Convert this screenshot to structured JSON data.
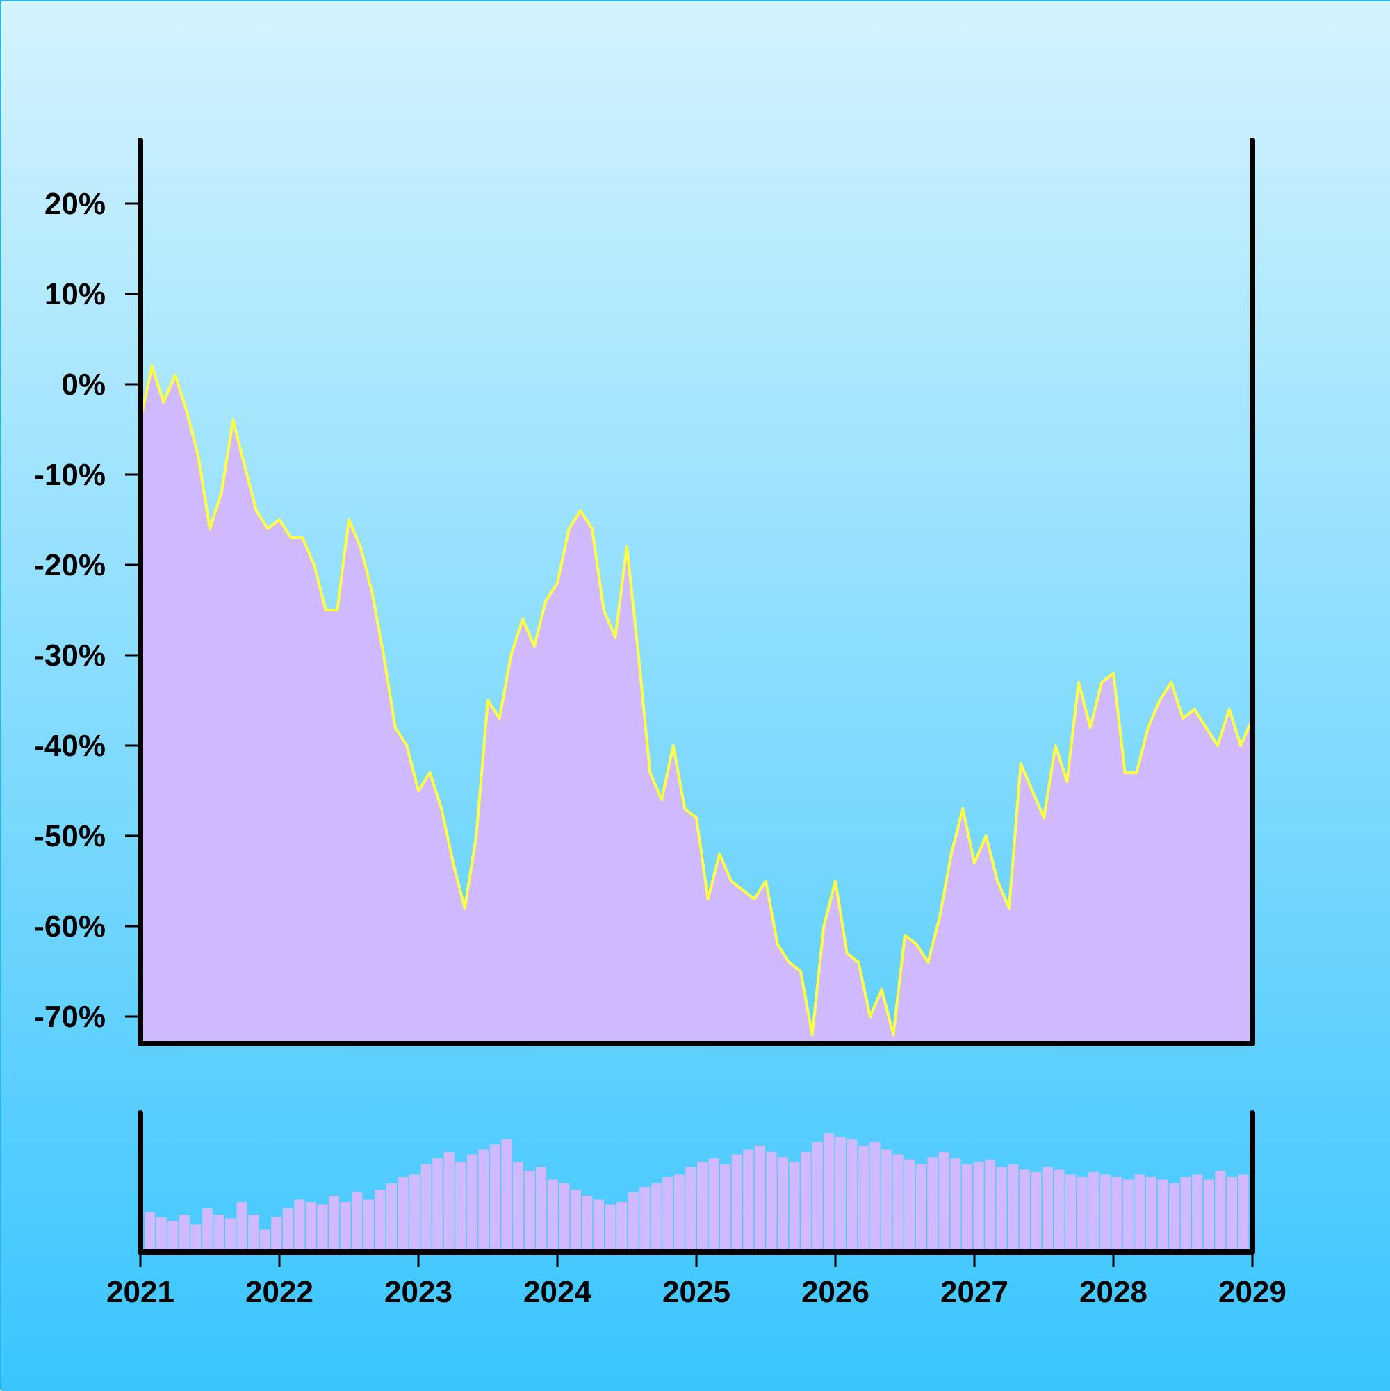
{
  "chart_data": [
    {
      "type": "area",
      "panel": "price",
      "x_range": [
        "2021-01",
        "2029-01"
      ],
      "ylim": [
        -73,
        27
      ],
      "y_ticks": [
        20,
        10,
        0,
        -10,
        -20,
        -30,
        -40,
        -50,
        -60,
        -70
      ],
      "y_tick_labels": [
        "20%",
        "10%",
        "0%",
        "-10%",
        "-20%",
        "-30%",
        "-40%",
        "-50%",
        "-60%",
        "-70%"
      ],
      "y_unit": "%",
      "grid": false,
      "series": [
        {
          "kind": "cumulative return (%)",
          "points": [
            [
              "2021-01",
              -4
            ],
            [
              "2021-02",
              2
            ],
            [
              "2021-03",
              -2
            ],
            [
              "2021-04",
              1
            ],
            [
              "2021-05",
              -3
            ],
            [
              "2021-06",
              -8
            ],
            [
              "2021-07",
              -16
            ],
            [
              "2021-08",
              -12
            ],
            [
              "2021-09",
              -4
            ],
            [
              "2021-10",
              -9
            ],
            [
              "2021-11",
              -14
            ],
            [
              "2021-12",
              -16
            ],
            [
              "2022-01",
              -15
            ],
            [
              "2022-02",
              -17
            ],
            [
              "2022-03",
              -17
            ],
            [
              "2022-04",
              -20
            ],
            [
              "2022-05",
              -25
            ],
            [
              "2022-06",
              -25
            ],
            [
              "2022-07",
              -15
            ],
            [
              "2022-08",
              -18
            ],
            [
              "2022-09",
              -23
            ],
            [
              "2022-10",
              -30
            ],
            [
              "2022-11",
              -38
            ],
            [
              "2022-12",
              -40
            ],
            [
              "2023-01",
              -45
            ],
            [
              "2023-02",
              -43
            ],
            [
              "2023-03",
              -47
            ],
            [
              "2023-04",
              -53
            ],
            [
              "2023-05",
              -58
            ],
            [
              "2023-06",
              -50
            ],
            [
              "2023-07",
              -35
            ],
            [
              "2023-08",
              -37
            ],
            [
              "2023-09",
              -30
            ],
            [
              "2023-10",
              -26
            ],
            [
              "2023-11",
              -29
            ],
            [
              "2023-12",
              -24
            ],
            [
              "2024-01",
              -22
            ],
            [
              "2024-02",
              -16
            ],
            [
              "2024-03",
              -14
            ],
            [
              "2024-04",
              -16
            ],
            [
              "2024-05",
              -25
            ],
            [
              "2024-06",
              -28
            ],
            [
              "2024-07",
              -18
            ],
            [
              "2024-08",
              -30
            ],
            [
              "2024-09",
              -43
            ],
            [
              "2024-10",
              -46
            ],
            [
              "2024-11",
              -40
            ],
            [
              "2024-12",
              -47
            ],
            [
              "2025-01",
              -48
            ],
            [
              "2025-02",
              -57
            ],
            [
              "2025-03",
              -52
            ],
            [
              "2025-04",
              -55
            ],
            [
              "2025-05",
              -56
            ],
            [
              "2025-06",
              -57
            ],
            [
              "2025-07",
              -55
            ],
            [
              "2025-08",
              -62
            ],
            [
              "2025-09",
              -64
            ],
            [
              "2025-10",
              -65
            ],
            [
              "2025-11",
              -72
            ],
            [
              "2025-12",
              -60
            ],
            [
              "2026-01",
              -55
            ],
            [
              "2026-02",
              -63
            ],
            [
              "2026-03",
              -64
            ],
            [
              "2026-04",
              -70
            ],
            [
              "2026-05",
              -67
            ],
            [
              "2026-06",
              -72
            ],
            [
              "2026-07",
              -61
            ],
            [
              "2026-08",
              -62
            ],
            [
              "2026-09",
              -64
            ],
            [
              "2026-10",
              -59
            ],
            [
              "2026-11",
              -52
            ],
            [
              "2026-12",
              -47
            ],
            [
              "2027-01",
              -53
            ],
            [
              "2027-02",
              -50
            ],
            [
              "2027-03",
              -55
            ],
            [
              "2027-04",
              -58
            ],
            [
              "2027-05",
              -42
            ],
            [
              "2027-06",
              -45
            ],
            [
              "2027-07",
              -48
            ],
            [
              "2027-08",
              -40
            ],
            [
              "2027-09",
              -44
            ],
            [
              "2027-10",
              -33
            ],
            [
              "2027-11",
              -38
            ],
            [
              "2027-12",
              -33
            ],
            [
              "2028-01",
              -32
            ],
            [
              "2028-02",
              -43
            ],
            [
              "2028-03",
              -43
            ],
            [
              "2028-04",
              -38
            ],
            [
              "2028-05",
              -35
            ],
            [
              "2028-06",
              -33
            ],
            [
              "2028-07",
              -37
            ],
            [
              "2028-08",
              -36
            ],
            [
              "2028-09",
              -38
            ],
            [
              "2028-10",
              -40
            ],
            [
              "2028-11",
              -36
            ],
            [
              "2028-12",
              -40
            ],
            [
              "2029-01",
              -37
            ]
          ]
        }
      ]
    },
    {
      "type": "bar",
      "panel": "volume",
      "x_range": [
        "2021-01",
        "2029-01"
      ],
      "y_axis_labels": false,
      "values_relative": [
        0.32,
        0.28,
        0.25,
        0.3,
        0.22,
        0.35,
        0.3,
        0.27,
        0.4,
        0.3,
        0.18,
        0.28,
        0.35,
        0.42,
        0.4,
        0.38,
        0.45,
        0.4,
        0.48,
        0.42,
        0.5,
        0.55,
        0.6,
        0.62,
        0.7,
        0.75,
        0.8,
        0.72,
        0.78,
        0.82,
        0.86,
        0.9,
        0.72,
        0.65,
        0.68,
        0.58,
        0.55,
        0.5,
        0.45,
        0.42,
        0.38,
        0.4,
        0.48,
        0.52,
        0.55,
        0.6,
        0.62,
        0.68,
        0.72,
        0.75,
        0.7,
        0.78,
        0.82,
        0.85,
        0.8,
        0.76,
        0.72,
        0.8,
        0.88,
        0.95,
        0.92,
        0.9,
        0.85,
        0.88,
        0.82,
        0.78,
        0.74,
        0.7,
        0.76,
        0.8,
        0.75,
        0.7,
        0.72,
        0.74,
        0.68,
        0.7,
        0.66,
        0.64,
        0.68,
        0.66,
        0.62,
        0.6,
        0.64,
        0.62,
        0.6,
        0.58,
        0.62,
        0.6,
        0.58,
        0.55,
        0.6,
        0.62,
        0.58,
        0.65,
        0.6,
        0.62
      ]
    }
  ],
  "x_axis": {
    "tick_labels": [
      "2021",
      "2022",
      "2023",
      "2024",
      "2025",
      "2026",
      "2027",
      "2028",
      "2029"
    ]
  },
  "colors": {
    "background_top": "#d4f3fe",
    "background_bottom": "#39c5fe",
    "area_fill": "#d1b9ff",
    "line": "#ffff44",
    "volume_fill": "#d1b9ff",
    "axis": "#000000"
  }
}
